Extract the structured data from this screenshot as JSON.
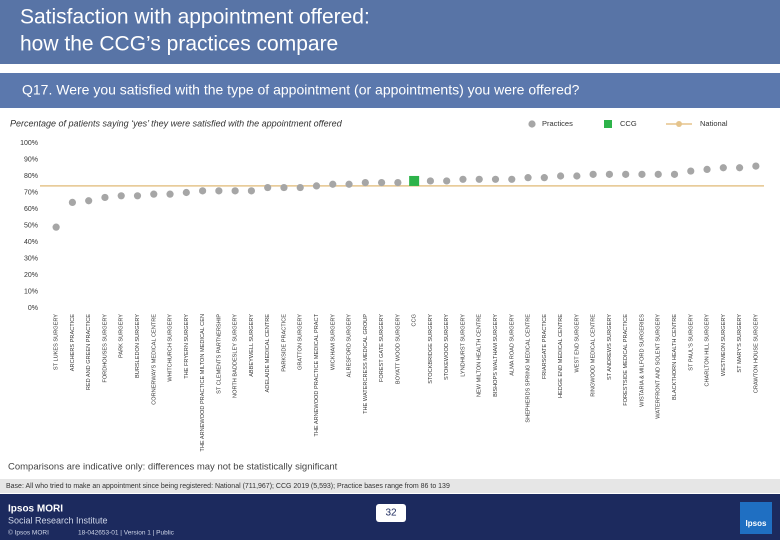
{
  "title": [
    "Satisfaction with appointment offered:",
    "how the CCG’s practices compare"
  ],
  "question": "Q17. Were you satisfied with the type of appointment (or appointments) you were offered?",
  "chart_data": {
    "type": "dot",
    "subtitle": "Percentage of patients saying ‘yes’ they were satisfied with the appointment offered",
    "categories": [
      "ST LUKES SURGERY",
      "ARCHERS PRACTICE",
      "RED AND GREEN PRACTICE",
      "FORDHOUSES SURGERY",
      "PARK SURGERY",
      "BURSLEDON SURGERY",
      "CORNERWAYS MEDICAL CENTRE",
      "WHITCHURCH SURGERY",
      "THE FRYERN SURGERY",
      "THE ARNEWOOD PRACTICE MILTON MEDICAL CEN",
      "ST CLEMENTS PARTNERSHIP",
      "NORTH BADDESLEY SURGERY",
      "ABBEYWELL SURGERY",
      "ADELAIDE MEDICAL CENTRE",
      "PARKSIDE PRACTICE",
      "GRATTON SURGERY",
      "THE ARNEWOOD PRACTICE MEDICAL PRACT",
      "WICKHAM SURGERY",
      "ALRESFORD SURGERY",
      "THE WATERCRESS MEDICAL GROUP",
      "FOREST GATE SURGERY",
      "BOYATT WOOD SURGERY",
      "CCG",
      "STOCKBRIDGE SURGERY",
      "STOKEWOOD SURGERY",
      "LYNDHURST SURGERY",
      "NEW MILTON HEALTH CENTRE",
      "BISHOPS WALTHAM SURGERY",
      "ALMA ROAD SURGERY",
      "SHEPHERDS SPRING MEDICAL CENTRE",
      "FRIARSGATE PRACTICE",
      "HEDGE END MEDICAL CENTRE",
      "WEST END SURGERY",
      "RINGWOOD MEDICAL CENTRE",
      "ST ANDREWS SURGERY",
      "FORESTSIDE MEDICAL PRACTICE",
      "WISTARIA & MILFORD SURGERIES",
      "WATERFRONT AND SOLENT SURGERY",
      "BLACKTHORN HEALTH CENTRE",
      "ST PAUL'S SURGERY",
      "CHARLTON HILL SURGERY",
      "WESTMEON SURGERY",
      "ST MARY'S SURGERY",
      "CRAWTON HOUSE SURGERY"
    ],
    "series": [
      {
        "name": "Practices",
        "mark": "dot",
        "color": "#a6a6a6",
        "values": [
          49,
          64,
          65,
          67,
          68,
          68,
          69,
          69,
          70,
          71,
          71,
          71,
          71,
          73,
          73,
          73,
          74,
          75,
          75,
          76,
          76,
          76,
          null,
          77,
          77,
          78,
          78,
          78,
          78,
          79,
          79,
          80,
          80,
          81,
          81,
          81,
          81,
          81,
          81,
          83,
          84,
          85,
          85,
          86
        ]
      },
      {
        "name": "CCG",
        "mark": "bar",
        "color": "#2db34a",
        "values": [
          null,
          null,
          null,
          null,
          null,
          null,
          null,
          null,
          null,
          null,
          null,
          null,
          null,
          null,
          null,
          null,
          null,
          null,
          null,
          null,
          null,
          null,
          77,
          null,
          null,
          null,
          null,
          null,
          null,
          null,
          null,
          null,
          null,
          null,
          null,
          null,
          null,
          null,
          null,
          null,
          null,
          null,
          null,
          null
        ]
      }
    ],
    "reference_line": {
      "name": "National",
      "value": 74,
      "color": "#e5c48c"
    },
    "ylim": [
      0,
      100
    ],
    "yticks": [
      {
        "value": 0,
        "label": "0%"
      },
      {
        "value": 10,
        "label": "10%"
      },
      {
        "value": 20,
        "label": "20%"
      },
      {
        "value": 30,
        "label": "30%"
      },
      {
        "value": 40,
        "label": "40%"
      },
      {
        "value": 50,
        "label": "50%"
      },
      {
        "value": 60,
        "label": "60%"
      },
      {
        "value": 70,
        "label": "70%"
      },
      {
        "value": 80,
        "label": "80%"
      },
      {
        "value": 90,
        "label": "90%"
      },
      {
        "value": 100,
        "label": "100%"
      }
    ],
    "grid": false
  },
  "note": "Comparisons are indicative only: differences may not be statistically significant",
  "base": "Base: All who tried to make an appointment since being registered: National (711,967); CCG 2019 (5,593); Practice bases range from 86 to 139",
  "page_number": "32",
  "footer": {
    "brand": "Ipsos MORI",
    "institute": "Social Research Institute",
    "copyright": "© Ipsos MORI",
    "reference": "18-042653-01 | Version 1 | Public",
    "logo": "Ipsos"
  }
}
